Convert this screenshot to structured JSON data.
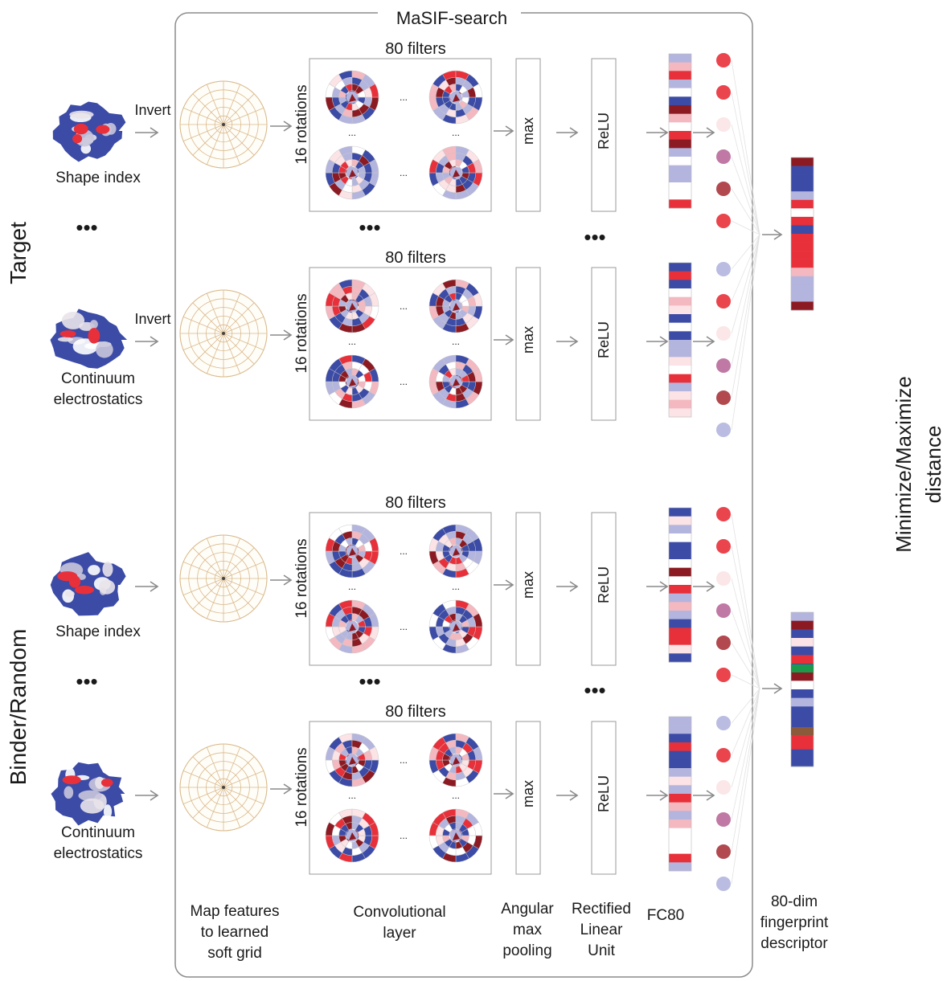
{
  "title": "MaSIF-search",
  "groups": {
    "target": "Target",
    "binder": "Binder/Random"
  },
  "right_label": {
    "line1": "Minimize/Maximize",
    "line2": "distance"
  },
  "rows": [
    {
      "input_label": [
        "Shape index"
      ],
      "invert": "Invert",
      "filters": "80 filters",
      "rotations": "16 rotations",
      "pool": "max",
      "relu": "ReLU"
    },
    {
      "input_label": [
        "Continuum",
        "electrostatics"
      ],
      "invert": "Invert",
      "filters": "80 filters",
      "rotations": "16 rotations",
      "pool": "max",
      "relu": "ReLU"
    },
    {
      "input_label": [
        "Shape index"
      ],
      "invert": "",
      "filters": "80 filters",
      "rotations": "16 rotations",
      "pool": "max",
      "relu": "ReLU"
    },
    {
      "input_label": [
        "Continuum",
        "electrostatics"
      ],
      "invert": "",
      "filters": "80 filters",
      "rotations": "16 rotations",
      "pool": "max",
      "relu": "ReLU"
    }
  ],
  "ellipsis": "•••",
  "small_ellipsis": "...",
  "bottom_labels": {
    "map": [
      "Map features",
      "to learned",
      "soft grid"
    ],
    "conv": [
      "Convolutional",
      "layer"
    ],
    "pool": [
      "Angular",
      "max",
      "pooling"
    ],
    "relu": [
      "Rectified",
      "Linear",
      "Unit"
    ],
    "fc": [
      "FC80"
    ],
    "fingerprint": [
      "80-dim",
      "fingerprint",
      "descriptor"
    ]
  },
  "colors": {
    "blue": "#3b4ba6",
    "red": "#e8303a",
    "darkred": "#8c1a22",
    "pink": "#f4b8c0",
    "lightblue": "#b3b5de",
    "pale": "#fbe3e6",
    "green": "#1a9a4a",
    "brown": "#8a5a3a",
    "grid": "#d9b98a",
    "arrow": "#8a8a8a"
  }
}
